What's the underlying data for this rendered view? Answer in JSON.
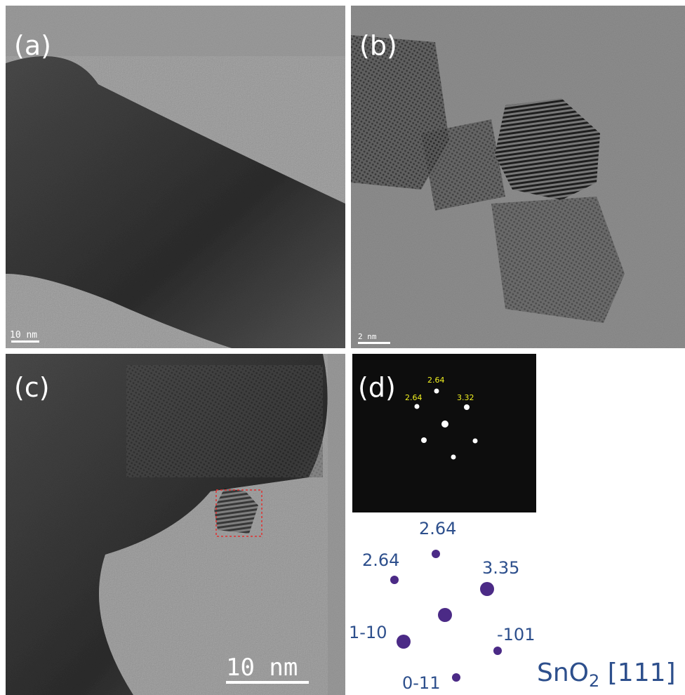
{
  "panels": [
    {
      "label": "(a)",
      "scale_bar": "10 nm"
    },
    {
      "label": "(b)",
      "scale_bar": "2 nm"
    },
    {
      "label": "(c)",
      "scale_bar": "10 nm"
    },
    {
      "label": "(d)"
    }
  ],
  "fft_labels": [
    "2.64",
    "2.64",
    "3.32"
  ],
  "diagram": {
    "labels": [
      "2.64",
      "2.64",
      "3.35",
      "1-10",
      "-101",
      "0-11"
    ],
    "caption": {
      "formula": "SnO",
      "subscript": "2",
      "zone": " [111]"
    }
  }
}
